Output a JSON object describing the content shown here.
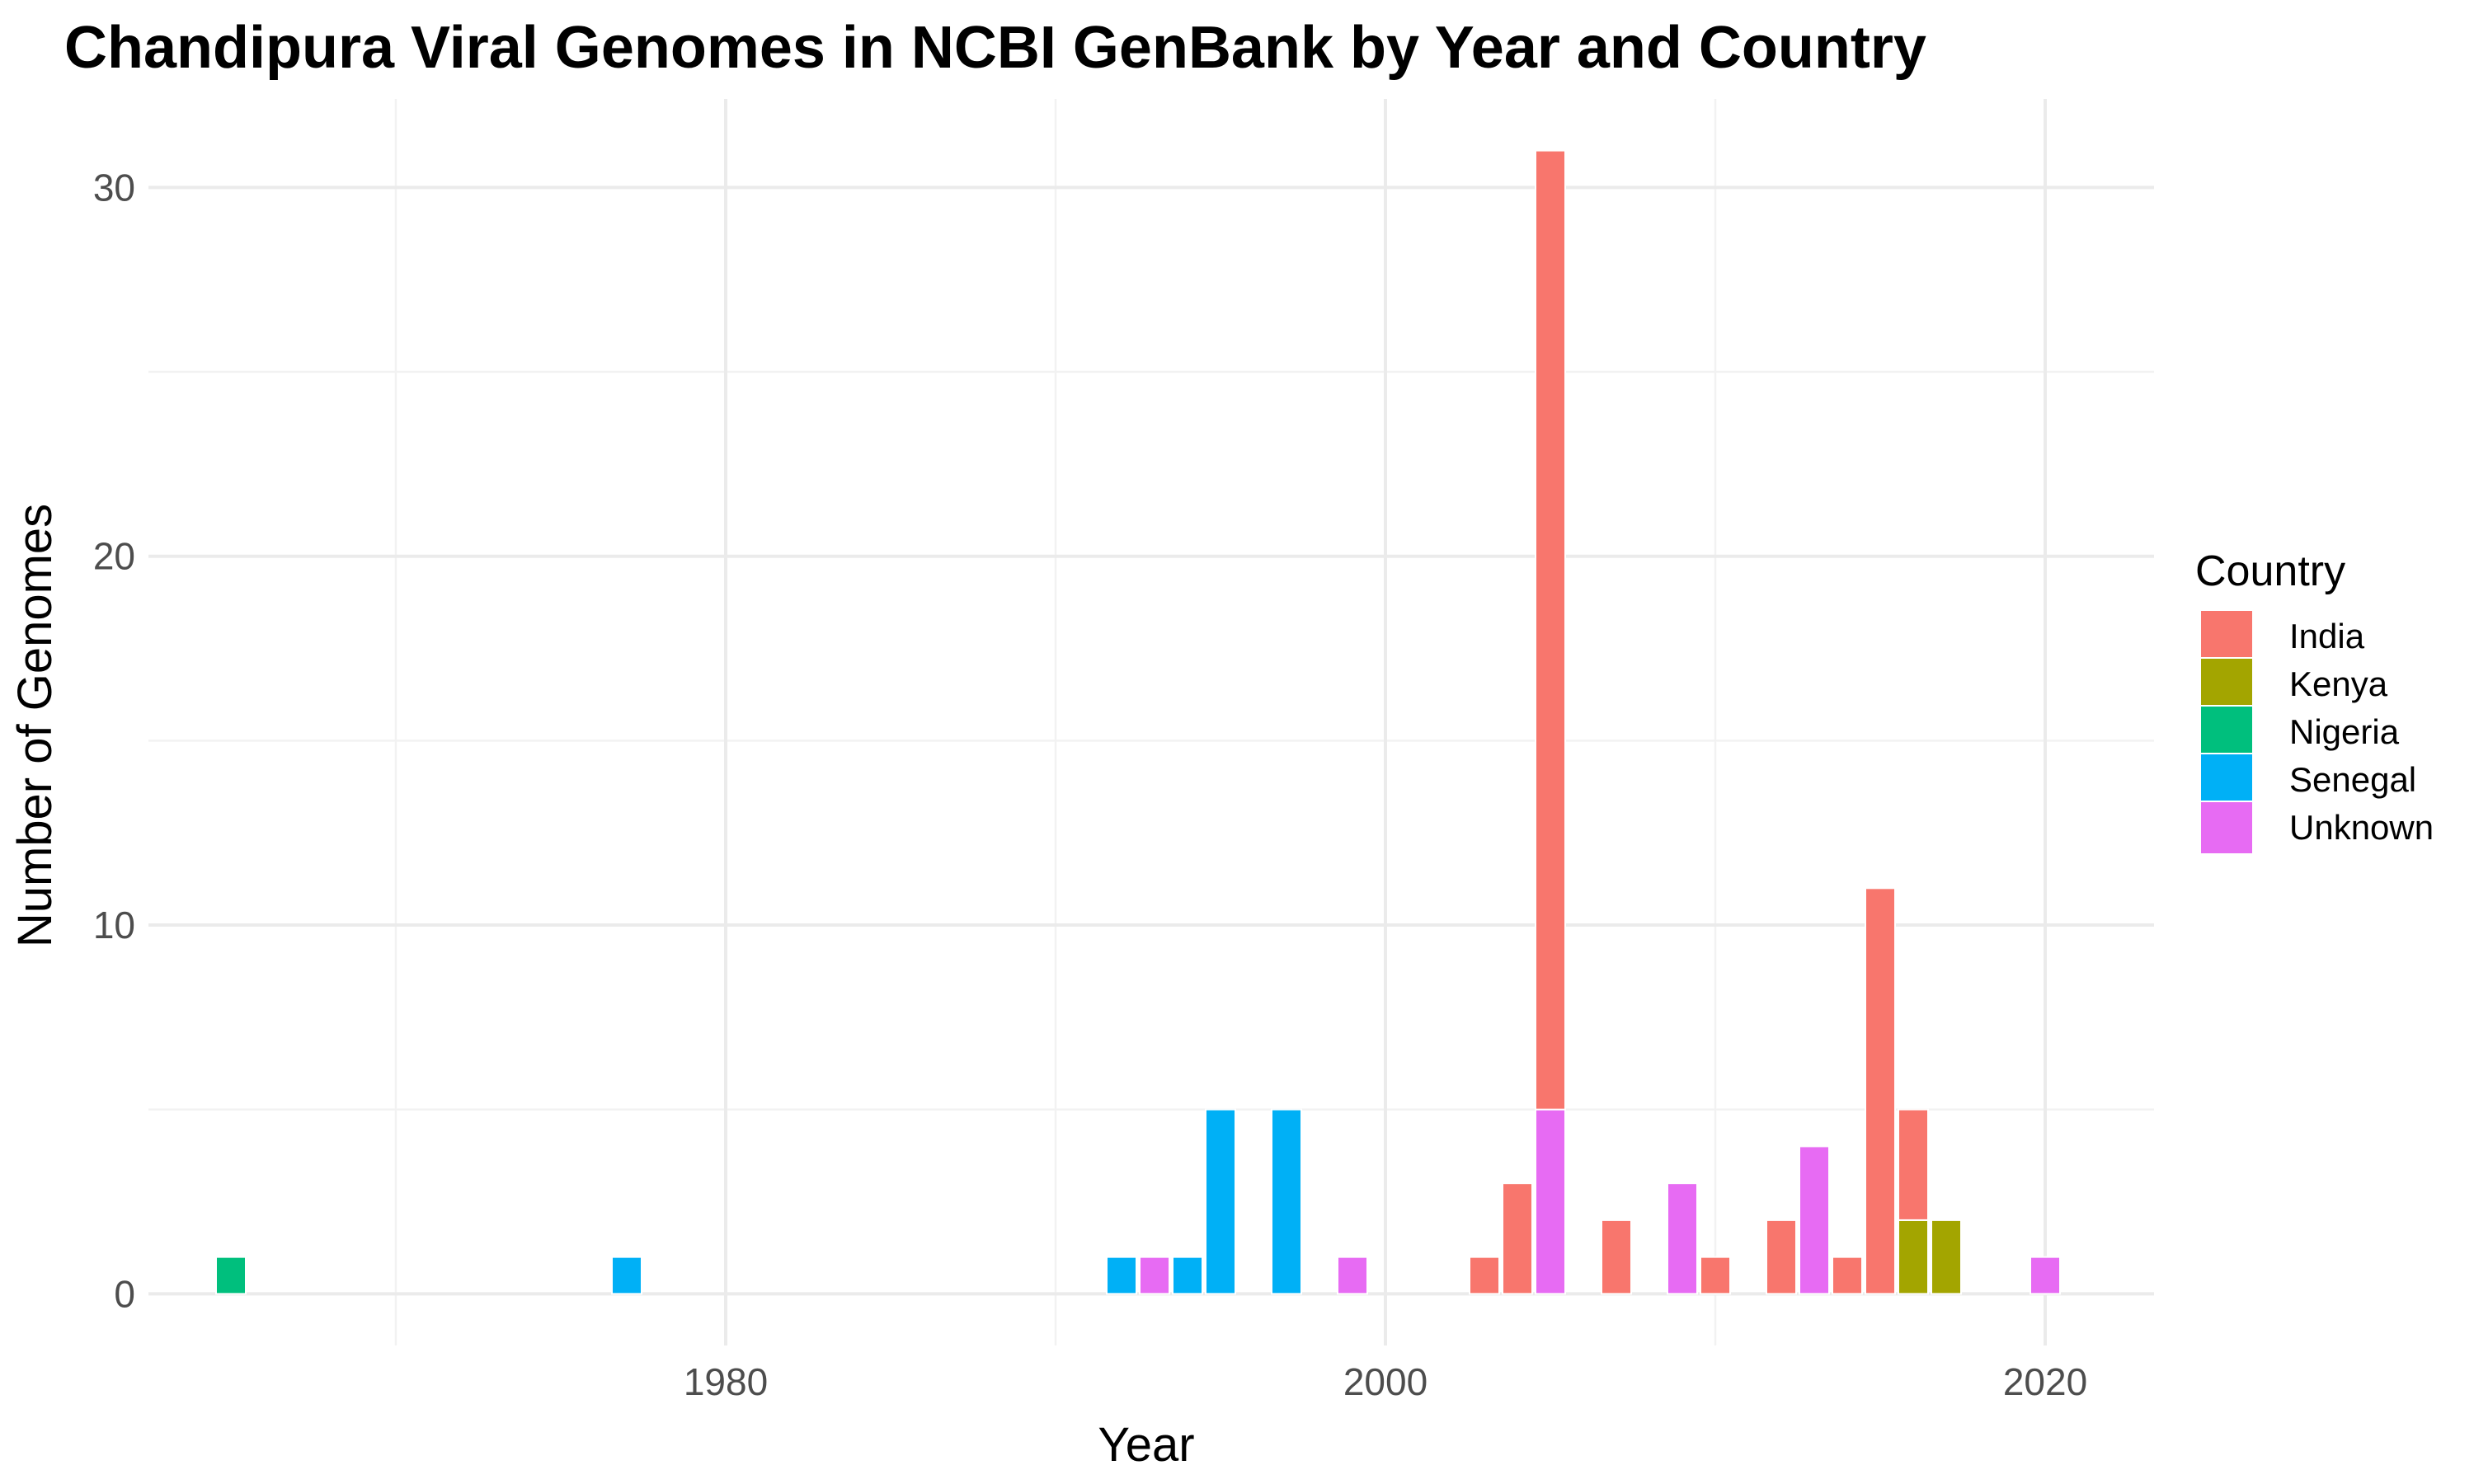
{
  "chart_data": {
    "type": "bar",
    "stacked": true,
    "title": "Chandipura Viral Genomes in NCBI GenBank by Year and Country",
    "xlabel": "Year",
    "ylabel": "Number of Genomes",
    "xlim": [
      1962.5,
      2023.3
    ],
    "ylim": [
      -1.4,
      32.4
    ],
    "x_ticks": [
      1980,
      2000,
      2020
    ],
    "y_ticks": [
      0,
      10,
      20,
      30
    ],
    "grid": true,
    "legend": {
      "title": "Country",
      "placement": "right"
    },
    "series": [
      {
        "name": "India",
        "color": "#F8766D",
        "points": [
          [
            2003,
            1
          ],
          [
            2004,
            3
          ],
          [
            2005,
            26
          ],
          [
            2007,
            2
          ],
          [
            2010,
            1
          ],
          [
            2012,
            2
          ],
          [
            2014,
            1
          ],
          [
            2015,
            11
          ],
          [
            2016,
            3
          ]
        ]
      },
      {
        "name": "Kenya",
        "color": "#A3A500",
        "points": [
          [
            2016,
            2
          ],
          [
            2017,
            2
          ]
        ]
      },
      {
        "name": "Nigeria",
        "color": "#00BF7D",
        "points": [
          [
            1965,
            1
          ]
        ]
      },
      {
        "name": "Senegal",
        "color": "#00B0F6",
        "points": [
          [
            1977,
            1
          ],
          [
            1992,
            1
          ],
          [
            1994,
            1
          ],
          [
            1995,
            5
          ],
          [
            1997,
            5
          ]
        ]
      },
      {
        "name": "Unknown",
        "color": "#E76BF3",
        "points": [
          [
            1993,
            1
          ],
          [
            1999,
            1
          ],
          [
            2005,
            5
          ],
          [
            2009,
            3
          ],
          [
            2013,
            4
          ],
          [
            2020,
            1
          ]
        ]
      }
    ],
    "stack_order_bottom_to_top": [
      "Unknown",
      "Senegal",
      "Nigeria",
      "Kenya",
      "India"
    ]
  }
}
